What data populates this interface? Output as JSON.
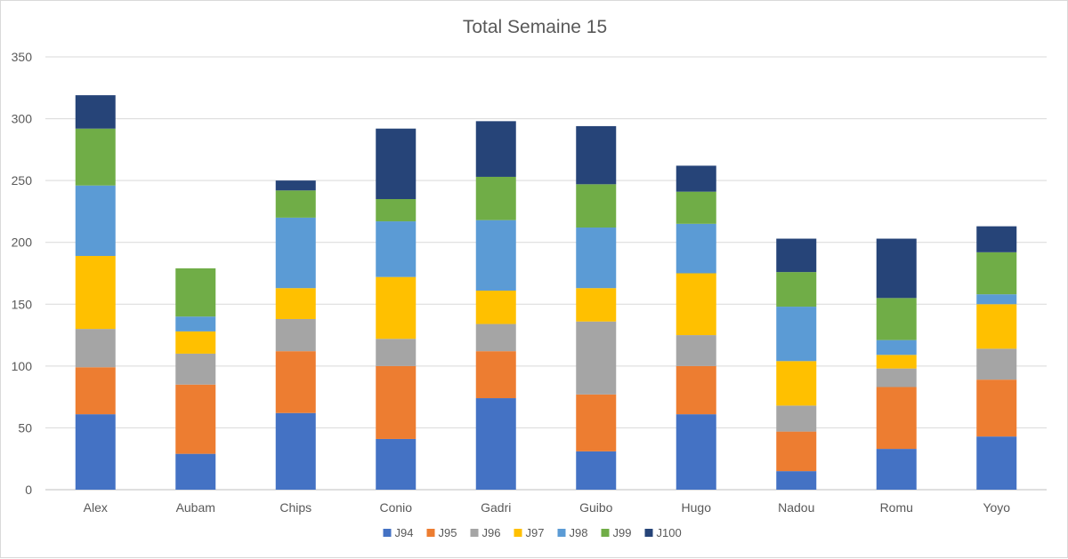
{
  "chart_data": {
    "type": "bar",
    "stacked": true,
    "title": "Total Semaine 15",
    "xlabel": "",
    "ylabel": "",
    "ylim": [
      0,
      350
    ],
    "yticks": [
      0,
      50,
      100,
      150,
      200,
      250,
      300,
      350
    ],
    "grid": true,
    "legend_position": "bottom",
    "categories": [
      "Alex",
      "Aubam",
      "Chips",
      "Conio",
      "Gadri",
      "Guibo",
      "Hugo",
      "Nadou",
      "Romu",
      "Yoyo"
    ],
    "series": [
      {
        "name": "J94",
        "color": "#4472C4",
        "values": [
          61,
          29,
          62,
          41,
          74,
          31,
          61,
          15,
          33,
          43
        ]
      },
      {
        "name": "J95",
        "color": "#ED7D31",
        "values": [
          38,
          56,
          50,
          59,
          38,
          46,
          39,
          32,
          50,
          46
        ]
      },
      {
        "name": "J96",
        "color": "#A5A5A5",
        "values": [
          31,
          25,
          26,
          22,
          22,
          59,
          25,
          21,
          15,
          25
        ]
      },
      {
        "name": "J97",
        "color": "#FFC000",
        "values": [
          59,
          18,
          25,
          50,
          27,
          27,
          50,
          36,
          11,
          36
        ]
      },
      {
        "name": "J98",
        "color": "#5B9BD5",
        "values": [
          57,
          12,
          57,
          45,
          57,
          49,
          40,
          44,
          12,
          8
        ]
      },
      {
        "name": "J99",
        "color": "#70AD47",
        "values": [
          46,
          39,
          22,
          18,
          35,
          35,
          26,
          28,
          34,
          34
        ]
      },
      {
        "name": "J100",
        "color": "#264478",
        "values": [
          27,
          0,
          8,
          57,
          45,
          47,
          21,
          27,
          48,
          21
        ]
      }
    ]
  }
}
